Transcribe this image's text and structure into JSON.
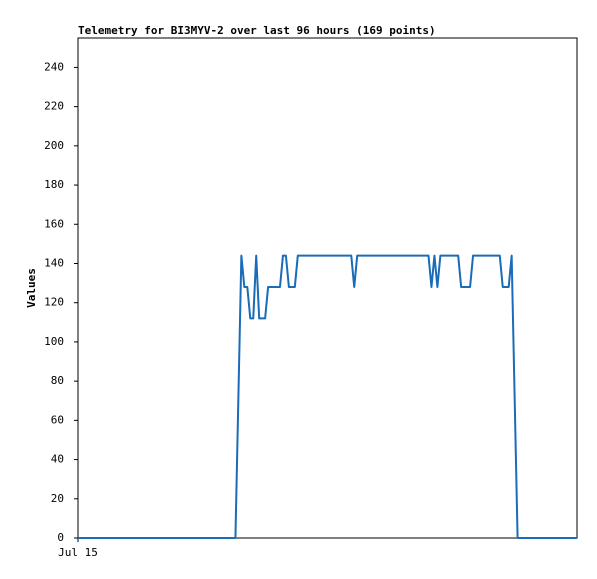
{
  "chart_data": {
    "type": "line",
    "title": "Telemetry for BI3MYV-2 over last 96 hours (169 points)",
    "ylabel": "Values",
    "series": [
      {
        "color": "#1a6bb8",
        "values": [
          0,
          0,
          0,
          0,
          0,
          0,
          0,
          0,
          0,
          0,
          0,
          0,
          0,
          0,
          0,
          0,
          0,
          0,
          0,
          0,
          0,
          0,
          0,
          0,
          0,
          0,
          0,
          0,
          0,
          0,
          0,
          0,
          0,
          0,
          0,
          0,
          0,
          0,
          0,
          0,
          0,
          0,
          0,
          0,
          0,
          0,
          0,
          0,
          0,
          0,
          0,
          0,
          0,
          0,
          72,
          144,
          128,
          128,
          112,
          112,
          144,
          112,
          112,
          112,
          128,
          128,
          128,
          128,
          128,
          144,
          144,
          128,
          128,
          128,
          144,
          144,
          144,
          144,
          144,
          144,
          144,
          144,
          144,
          144,
          144,
          144,
          144,
          144,
          144,
          144,
          144,
          144,
          144,
          128,
          144,
          144,
          144,
          144,
          144,
          144,
          144,
          144,
          144,
          144,
          144,
          144,
          144,
          144,
          144,
          144,
          144,
          144,
          144,
          144,
          144,
          144,
          144,
          144,
          144,
          128,
          144,
          128,
          144,
          144,
          144,
          144,
          144,
          144,
          144,
          128,
          128,
          128,
          128,
          144,
          144,
          144,
          144,
          144,
          144,
          144,
          144,
          144,
          144,
          128,
          128,
          128,
          144,
          72,
          0,
          0,
          0,
          0,
          0,
          0,
          0,
          0,
          0,
          0,
          0,
          0,
          0,
          0,
          0,
          0,
          0,
          0,
          0,
          0,
          0
        ]
      }
    ],
    "xlim": [
      0,
      168
    ],
    "xticks": [
      {
        "value": 0,
        "label": "Jul 15"
      }
    ],
    "ylim": [
      0,
      255
    ],
    "yticks": [
      0,
      20,
      40,
      60,
      80,
      100,
      120,
      140,
      160,
      180,
      200,
      220,
      240
    ],
    "grid": false
  }
}
